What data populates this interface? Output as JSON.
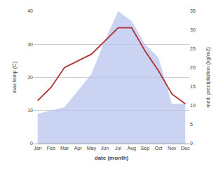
{
  "chart_data": {
    "type": "area",
    "x_label": "date (month)",
    "y_label": "max temp (C)",
    "y2_label": "med. precipitation (kg/m2)",
    "categories": [
      "Jan",
      "Feb",
      "Mar",
      "Apr",
      "May",
      "Jun",
      "Jul",
      "Aug",
      "Sep",
      "Oct",
      "Nov",
      "Dec"
    ],
    "series": [
      {
        "type": "area",
        "color": "#b8c4ed",
        "values": [
          9,
          10,
          11,
          16,
          21,
          31,
          40,
          37,
          30,
          26,
          12,
          12
        ]
      },
      {
        "type": "line",
        "color": "#b03030",
        "values": [
          13,
          17,
          23,
          25,
          27,
          31,
          35,
          35,
          28,
          22,
          15,
          12
        ]
      }
    ],
    "ylim": [
      0,
      40
    ],
    "yticks": [
      0,
      10,
      20,
      30,
      40
    ],
    "y2lim": [
      0,
      35
    ],
    "y2ticks": [
      0,
      5,
      10,
      15,
      20,
      25,
      30,
      35
    ],
    "grid": true
  }
}
